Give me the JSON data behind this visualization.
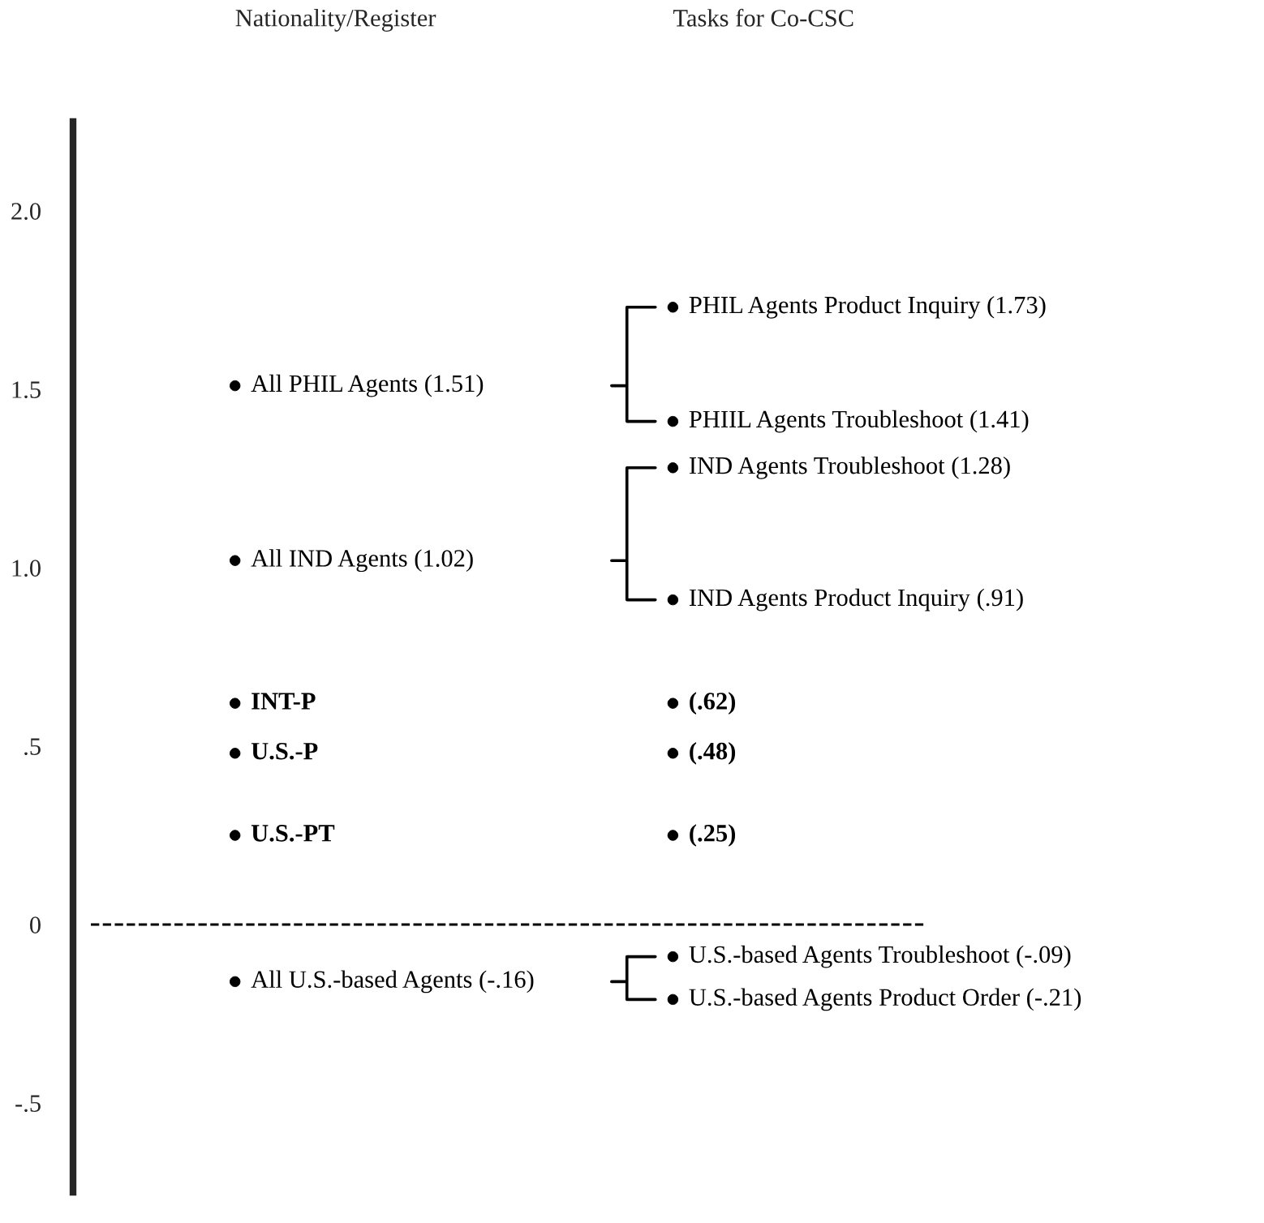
{
  "chart_data": {
    "type": "scatter",
    "categories": [
      "Nationality/Register",
      "Tasks for Co-CSC"
    ],
    "ylim": [
      -0.75,
      2.25
    ],
    "yticks": [
      {
        "value": 2.0,
        "label": "2.0"
      },
      {
        "value": 1.5,
        "label": "1.5"
      },
      {
        "value": 1.0,
        "label": "1.0"
      },
      {
        "value": 0.5,
        "label": ".5"
      },
      {
        "value": 0,
        "label": "0"
      },
      {
        "value": -0.5,
        "label": "-.5"
      }
    ],
    "marker": "circle",
    "ref_lines": [
      {
        "axis": "y",
        "value": 0,
        "line_style": "dashed",
        "color": "#000000"
      }
    ],
    "series": [
      {
        "color": "#000000",
        "x": [
          "Nationality/Register",
          "Tasks for Co-CSC",
          "Tasks for Co-CSC"
        ],
        "values": [
          1.51,
          1.73,
          1.41
        ],
        "value_labels": [
          "All PHIL Agents (1.51)",
          "PHIL Agents Product Inquiry (1.73)",
          "PHIIL Agents Troubleshoot (1.41)"
        ]
      },
      {
        "color": "#000000",
        "x": [
          "Nationality/Register",
          "Tasks for Co-CSC",
          "Tasks for Co-CSC"
        ],
        "values": [
          1.02,
          1.28,
          0.91
        ],
        "value_labels": [
          "All IND Agents (1.02)",
          "IND Agents Troubleshoot (1.28)",
          "IND Agents Product Inquiry (.91)"
        ]
      },
      {
        "color": "#000000",
        "x": [
          "Nationality/Register",
          "Tasks for Co-CSC",
          "Nationality/Register",
          "Tasks for Co-CSC",
          "Nationality/Register",
          "Tasks for Co-CSC"
        ],
        "values": [
          0.62,
          0.62,
          0.48,
          0.48,
          0.25,
          0.25
        ],
        "value_labels": [
          "INT-P",
          "(.62)",
          "U.S.-P",
          "(.48)",
          "U.S.-PT",
          "(.25)"
        ]
      },
      {
        "color": "#000000",
        "x": [
          "Nationality/Register",
          "Tasks for Co-CSC",
          "Tasks for Co-CSC"
        ],
        "values": [
          -0.16,
          -0.09,
          -0.21
        ],
        "value_labels": [
          "All U.S.-based Agents (-.16)",
          "U.S.-based Agents Troubleshoot (-.09)",
          "U.S.-based Agents Product Order (-.21)"
        ]
      }
    ]
  }
}
